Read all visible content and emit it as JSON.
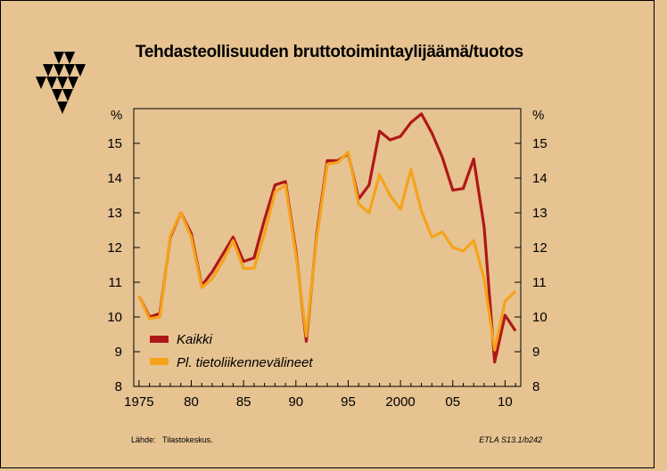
{
  "chart_data": {
    "type": "line",
    "title": "Tehdasteollisuuden bruttotoimintaylijäämä/tuotos",
    "unit_left": "%",
    "unit_right": "%",
    "ylim": [
      8,
      16
    ],
    "yticks": [
      8,
      9,
      10,
      11,
      12,
      13,
      14,
      15
    ],
    "xlim": [
      1974.5,
      2011.5
    ],
    "xticks": [
      1975,
      1980,
      1985,
      1990,
      1995,
      2000,
      2005,
      2010
    ],
    "xtick_labels": [
      "1975",
      "80",
      "85",
      "90",
      "95",
      "2000",
      "05",
      "10"
    ],
    "legend_position": "bottom-left",
    "series": [
      {
        "name": "Kaikki",
        "color": "#B01818",
        "x": [
          1975,
          1976,
          1977,
          1978,
          1979,
          1980,
          1981,
          1982,
          1983,
          1984,
          1985,
          1986,
          1987,
          1988,
          1989,
          1990,
          1991,
          1992,
          1993,
          1994,
          1995,
          1996,
          1997,
          1998,
          1999,
          2000,
          2001,
          2002,
          2003,
          2004,
          2005,
          2006,
          2007,
          2008,
          2009,
          2010,
          2011
        ],
        "values": [
          10.6,
          10.0,
          10.1,
          12.3,
          13.0,
          12.4,
          10.9,
          11.3,
          11.8,
          12.3,
          11.6,
          11.7,
          12.8,
          13.8,
          13.9,
          11.9,
          9.3,
          12.4,
          14.5,
          14.5,
          14.7,
          13.4,
          13.8,
          15.35,
          15.1,
          15.2,
          15.6,
          15.85,
          15.3,
          14.6,
          13.65,
          13.7,
          14.55,
          12.6,
          8.7,
          10.05,
          9.6
        ]
      },
      {
        "name": "Pl. tietoliikennevälineet",
        "color": "#F5A31B",
        "x": [
          1975,
          1976,
          1977,
          1978,
          1979,
          1980,
          1981,
          1982,
          1983,
          1984,
          1985,
          1986,
          1987,
          1988,
          1989,
          1990,
          1991,
          1992,
          1993,
          1994,
          1995,
          1996,
          1997,
          1998,
          1999,
          2000,
          2001,
          2002,
          2003,
          2004,
          2005,
          2006,
          2007,
          2008,
          2009,
          2010,
          2011
        ],
        "values": [
          10.6,
          9.95,
          10.0,
          12.35,
          13.0,
          12.3,
          10.85,
          11.1,
          11.6,
          12.2,
          11.4,
          11.4,
          12.4,
          13.6,
          13.8,
          11.8,
          9.45,
          12.3,
          14.4,
          14.45,
          14.75,
          13.25,
          13.0,
          14.1,
          13.5,
          13.1,
          14.25,
          13.05,
          12.3,
          12.45,
          12.0,
          11.9,
          12.2,
          11.1,
          9.05,
          10.45,
          10.75
        ]
      }
    ],
    "source_label": "Lähde:",
    "source_value": "Tilastokeskus.",
    "code": "ETLA S13.1/b242"
  }
}
